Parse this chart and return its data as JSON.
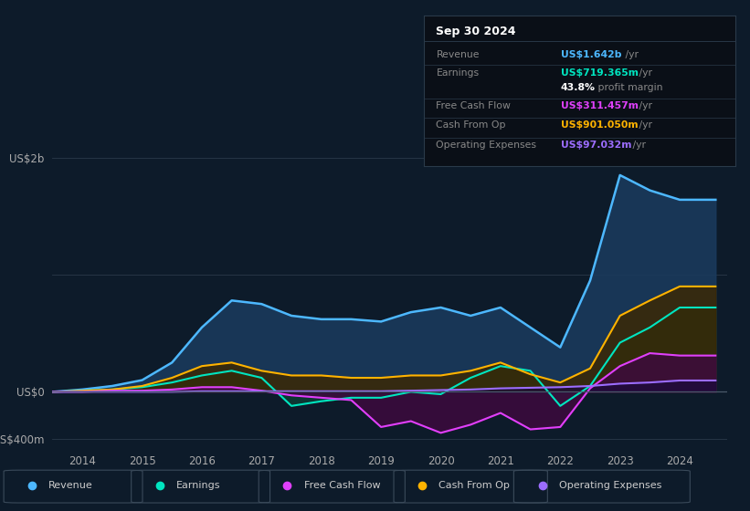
{
  "background_color": "#0d1b2a",
  "chart_bg": "#0d1b2a",
  "grid_color": "#2a3a4a",
  "title_text": "Sep 30 2024",
  "ylabel_top": "US$2b",
  "ylabel_zero": "US$0",
  "ylabel_bottom": "-US$400m",
  "x_labels": [
    "2014",
    "2015",
    "2016",
    "2017",
    "2018",
    "2019",
    "2020",
    "2021",
    "2022",
    "2023",
    "2024"
  ],
  "legend_items": [
    {
      "label": "Revenue",
      "color": "#4db8ff"
    },
    {
      "label": "Earnings",
      "color": "#00e5c0"
    },
    {
      "label": "Free Cash Flow",
      "color": "#e040fb"
    },
    {
      "label": "Cash From Op",
      "color": "#ffb300"
    },
    {
      "label": "Operating Expenses",
      "color": "#9c6dff"
    }
  ],
  "info_rows": [
    {
      "label": "Revenue",
      "value": "US$1.642b",
      "suffix": " /yr",
      "value_color": "#4db8ff",
      "label_color": "#888888"
    },
    {
      "label": "Earnings",
      "value": "US$719.365m",
      "suffix": " /yr",
      "value_color": "#00e5c0",
      "label_color": "#888888"
    },
    {
      "label": "",
      "value": "43.8%",
      "suffix": " profit margin",
      "value_color": "#ffffff",
      "label_color": "#888888"
    },
    {
      "label": "Free Cash Flow",
      "value": "US$311.457m",
      "suffix": " /yr",
      "value_color": "#e040fb",
      "label_color": "#888888"
    },
    {
      "label": "Cash From Op",
      "value": "US$901.050m",
      "suffix": " /yr",
      "value_color": "#ffb300",
      "label_color": "#888888"
    },
    {
      "label": "Operating Expenses",
      "value": "US$97.032m",
      "suffix": " /yr",
      "value_color": "#9c6dff",
      "label_color": "#888888"
    }
  ],
  "series": {
    "revenue": {
      "color": "#4db8ff",
      "fill_color": "#1a3a5c",
      "x": [
        2013.5,
        2014.0,
        2014.5,
        2015.0,
        2015.5,
        2016.0,
        2016.5,
        2017.0,
        2017.5,
        2018.0,
        2018.5,
        2019.0,
        2019.5,
        2020.0,
        2020.5,
        2021.0,
        2021.5,
        2022.0,
        2022.5,
        2023.0,
        2023.5,
        2024.0,
        2024.6
      ],
      "y": [
        0.0,
        0.02,
        0.05,
        0.1,
        0.25,
        0.55,
        0.78,
        0.75,
        0.65,
        0.62,
        0.62,
        0.6,
        0.68,
        0.72,
        0.65,
        0.72,
        0.55,
        0.38,
        0.95,
        1.85,
        1.72,
        1.64,
        1.64
      ]
    },
    "earnings": {
      "color": "#00e5c0",
      "fill_color": "#0d3d35",
      "x": [
        2013.5,
        2014.0,
        2014.5,
        2015.0,
        2015.5,
        2016.0,
        2016.5,
        2017.0,
        2017.5,
        2018.0,
        2018.5,
        2019.0,
        2019.5,
        2020.0,
        2020.5,
        2021.0,
        2021.5,
        2022.0,
        2022.5,
        2023.0,
        2023.5,
        2024.0,
        2024.6
      ],
      "y": [
        0.0,
        0.01,
        0.02,
        0.04,
        0.08,
        0.14,
        0.18,
        0.12,
        -0.12,
        -0.08,
        -0.05,
        -0.05,
        0.0,
        -0.02,
        0.12,
        0.22,
        0.18,
        -0.12,
        0.05,
        0.42,
        0.55,
        0.72,
        0.72
      ]
    },
    "free_cash_flow": {
      "color": "#e040fb",
      "fill_color": "#3d0a3d",
      "x": [
        2013.5,
        2014.0,
        2014.5,
        2015.0,
        2015.5,
        2016.0,
        2016.5,
        2017.0,
        2017.5,
        2018.0,
        2018.5,
        2019.0,
        2019.5,
        2020.0,
        2020.5,
        2021.0,
        2021.5,
        2022.0,
        2022.5,
        2023.0,
        2023.5,
        2024.0,
        2024.6
      ],
      "y": [
        0.0,
        0.0,
        0.01,
        0.01,
        0.02,
        0.04,
        0.04,
        0.01,
        -0.03,
        -0.05,
        -0.07,
        -0.3,
        -0.25,
        -0.35,
        -0.28,
        -0.18,
        -0.32,
        -0.3,
        0.03,
        0.22,
        0.33,
        0.31,
        0.31
      ]
    },
    "cash_from_op": {
      "color": "#ffb300",
      "fill_color": "#3d2800",
      "x": [
        2013.5,
        2014.0,
        2014.5,
        2015.0,
        2015.5,
        2016.0,
        2016.5,
        2017.0,
        2017.5,
        2018.0,
        2018.5,
        2019.0,
        2019.5,
        2020.0,
        2020.5,
        2021.0,
        2021.5,
        2022.0,
        2022.5,
        2023.0,
        2023.5,
        2024.0,
        2024.6
      ],
      "y": [
        0.0,
        0.01,
        0.02,
        0.05,
        0.12,
        0.22,
        0.25,
        0.18,
        0.14,
        0.14,
        0.12,
        0.12,
        0.14,
        0.14,
        0.18,
        0.25,
        0.15,
        0.08,
        0.2,
        0.65,
        0.78,
        0.9,
        0.9
      ]
    },
    "operating_expenses": {
      "color": "#9c6dff",
      "fill_color": "#1a0a3d",
      "x": [
        2013.5,
        2014.0,
        2014.5,
        2015.0,
        2015.5,
        2016.0,
        2016.5,
        2017.0,
        2017.5,
        2018.0,
        2018.5,
        2019.0,
        2019.5,
        2020.0,
        2020.5,
        2021.0,
        2021.5,
        2022.0,
        2022.5,
        2023.0,
        2023.5,
        2024.0,
        2024.6
      ],
      "y": [
        0.0,
        0.0,
        0.0,
        0.0,
        0.0,
        0.005,
        0.005,
        0.005,
        0.005,
        0.005,
        0.005,
        0.005,
        0.01,
        0.015,
        0.02,
        0.03,
        0.035,
        0.04,
        0.05,
        0.07,
        0.08,
        0.097,
        0.097
      ]
    }
  }
}
